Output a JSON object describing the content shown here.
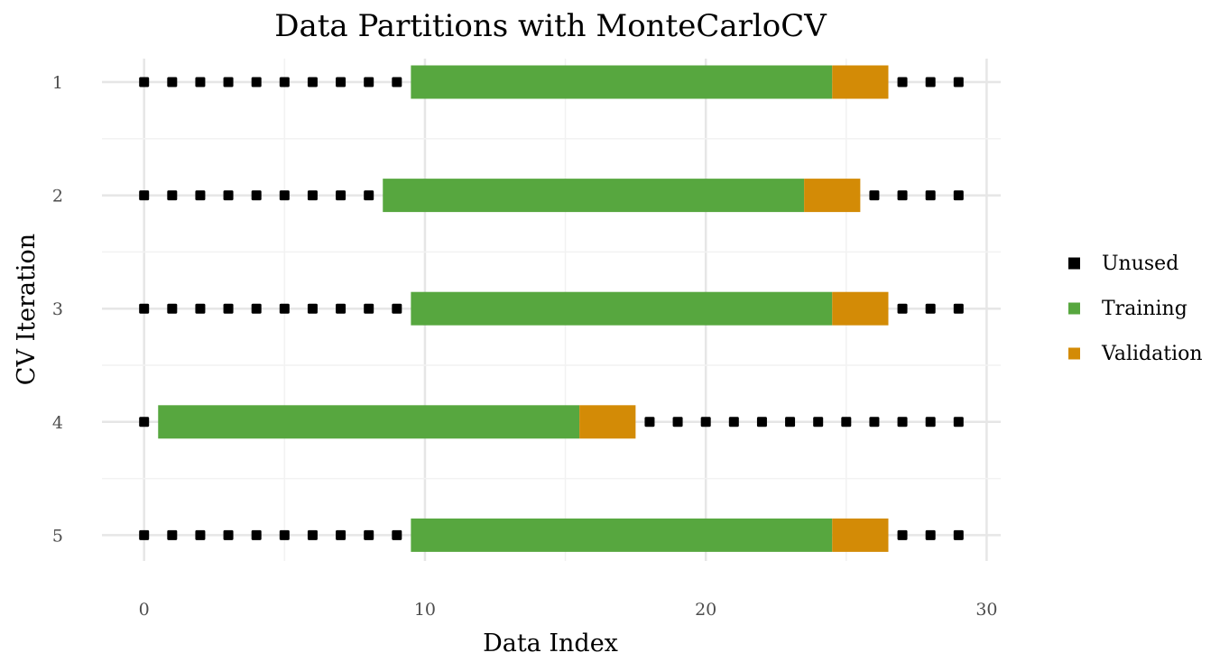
{
  "chart_data": {
    "type": "bar",
    "title": "Data Partitions with MonteCarloCV",
    "xlabel": "Data Index",
    "ylabel": "CV Iteration",
    "xlim": [
      -1.5,
      30.5
    ],
    "x_ticks": [
      0,
      10,
      20,
      30
    ],
    "y_categories": [
      "1",
      "2",
      "3",
      "4",
      "5"
    ],
    "n_indices": 30,
    "grid": true,
    "legend_position": "right",
    "legend": [
      {
        "key": "unused",
        "label": "Unused",
        "color": "#000000"
      },
      {
        "key": "training",
        "label": "Training",
        "color": "#57a73f"
      },
      {
        "key": "validation",
        "label": "Validation",
        "color": "#d38b06"
      }
    ],
    "iterations": [
      {
        "iteration": "1",
        "training": [
          10,
          24
        ],
        "validation": [
          25,
          26
        ]
      },
      {
        "iteration": "2",
        "training": [
          9,
          23
        ],
        "validation": [
          24,
          25
        ]
      },
      {
        "iteration": "3",
        "training": [
          10,
          24
        ],
        "validation": [
          25,
          26
        ]
      },
      {
        "iteration": "4",
        "training": [
          1,
          15
        ],
        "validation": [
          16,
          17
        ]
      },
      {
        "iteration": "5",
        "training": [
          10,
          24
        ],
        "validation": [
          25,
          26
        ]
      }
    ]
  }
}
